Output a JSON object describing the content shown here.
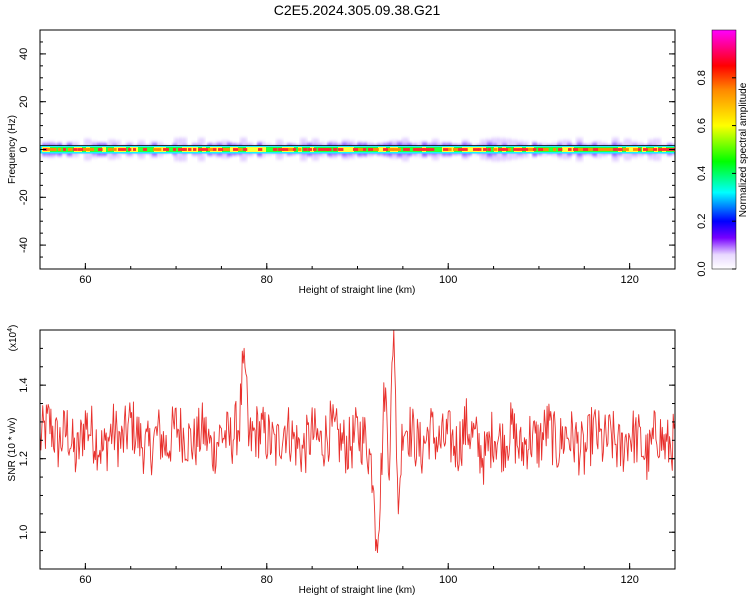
{
  "page": {
    "title": "C2E5.2024.305.09.38.G21"
  },
  "chart_data": [
    {
      "type": "heatmap",
      "title": "C2E5.2024.305.09.38.G21",
      "xlabel": "Height of straight line (km)",
      "ylabel": "Frequency (Hz)",
      "xlim": [
        55,
        125
      ],
      "ylim": [
        -50,
        50
      ],
      "x_ticks": [
        60,
        80,
        100,
        120
      ],
      "y_ticks": [
        -40,
        -20,
        0,
        20,
        40
      ],
      "grid": false,
      "colorbar": {
        "label": "Normalized spectral amplitude",
        "range": [
          0,
          1
        ],
        "ticks": [
          "0.0",
          "0.2",
          "0.4",
          "0.6",
          "0.8"
        ],
        "colors": [
          "#ffffff",
          "#7700ff",
          "#0000ff",
          "#00ffff",
          "#00ff00",
          "#ffff00",
          "#ff8800",
          "#ff0000",
          "#ff00ff"
        ]
      },
      "description_values": {
        "band_center_hz": 0,
        "core_halfwidth_hz": 1,
        "outer_halfwidth_hz": 4,
        "peak_amplitude": 0.9
      }
    },
    {
      "type": "line",
      "xlabel": "Height of straight line (km)",
      "ylabel": "SNR (10 * v/v)",
      "y_multiplier": "(x10",
      "y_multiplier_exp": "4",
      "y_multiplier_close": ")",
      "xlim": [
        55,
        125
      ],
      "ylim": [
        0.9,
        1.55
      ],
      "x_ticks": [
        60,
        80,
        100,
        120
      ],
      "y_ticks": [
        {
          "value": 1.0,
          "label": "1.0"
        },
        {
          "value": 1.2,
          "label": "1.2"
        },
        {
          "value": 1.4,
          "label": "1.4"
        }
      ],
      "color": "#e8302c",
      "grid": false,
      "series": [
        {
          "x": [
            55,
            56,
            57,
            58,
            59,
            60,
            61,
            62,
            63,
            64,
            65,
            66,
            67,
            68,
            69,
            70,
            71,
            72,
            73,
            74,
            75,
            76,
            77,
            77.5,
            78,
            79,
            80,
            81,
            82,
            83,
            84,
            85,
            86,
            87,
            88,
            89,
            90,
            91,
            91.8,
            92,
            92.5,
            93,
            93.5,
            94,
            94.5,
            95,
            96,
            97,
            98,
            99,
            100,
            101,
            102,
            103,
            104,
            105,
            106,
            107,
            108,
            109,
            110,
            111,
            112,
            113,
            114,
            115,
            116,
            117,
            118,
            119,
            120,
            121,
            122,
            123,
            124,
            125
          ],
          "y": [
            1.25,
            1.3,
            1.24,
            1.28,
            1.2,
            1.3,
            1.26,
            1.22,
            1.28,
            1.24,
            1.3,
            1.25,
            1.22,
            1.27,
            1.23,
            1.29,
            1.26,
            1.24,
            1.28,
            1.22,
            1.27,
            1.25,
            1.3,
            1.5,
            1.24,
            1.28,
            1.26,
            1.23,
            1.29,
            1.25,
            1.22,
            1.27,
            1.24,
            1.28,
            1.25,
            1.23,
            1.27,
            1.25,
            1.15,
            0.95,
            1.1,
            1.4,
            1.2,
            1.55,
            1.05,
            1.3,
            1.27,
            1.22,
            1.28,
            1.24,
            1.26,
            1.23,
            1.29,
            1.25,
            1.2,
            1.27,
            1.24,
            1.28,
            1.22,
            1.26,
            1.24,
            1.29,
            1.23,
            1.27,
            1.25,
            1.21,
            1.28,
            1.24,
            1.26,
            1.22,
            1.27,
            1.25,
            1.2,
            1.28,
            1.23,
            1.25
          ]
        }
      ]
    }
  ]
}
